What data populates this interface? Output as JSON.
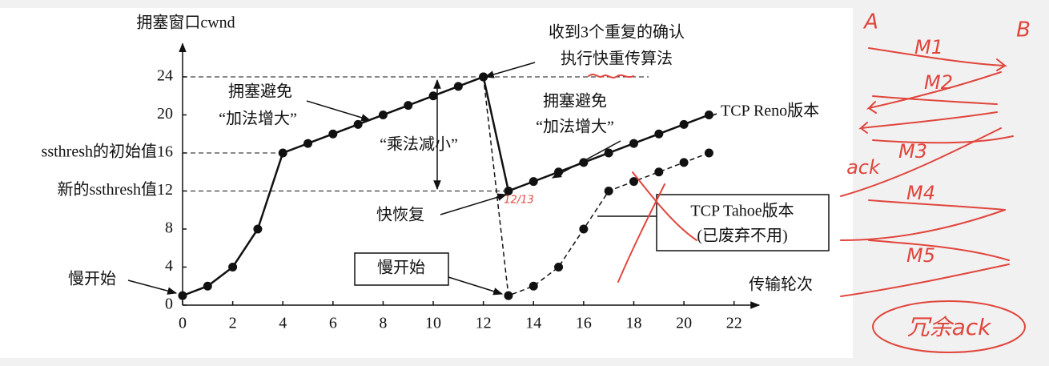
{
  "chart_data": {
    "type": "line",
    "y_label": "拥塞窗口cwnd",
    "x_label": "传输轮次",
    "x": [
      0,
      1,
      2,
      3,
      4,
      5,
      6,
      7,
      8,
      9,
      10,
      11,
      12,
      13,
      14,
      15,
      16,
      17,
      18,
      19,
      20,
      21
    ],
    "series": [
      {
        "name": "TCP Reno版本",
        "color": "#111111",
        "dashed": false,
        "values": [
          1,
          2,
          4,
          8,
          16,
          17,
          18,
          19,
          20,
          21,
          22,
          23,
          24,
          12,
          13,
          14,
          15,
          16,
          17,
          18,
          19,
          20
        ]
      },
      {
        "name": "TCP Tahoe版本",
        "color": "#111111",
        "dashed": true,
        "values": [
          null,
          null,
          null,
          null,
          null,
          null,
          null,
          null,
          null,
          null,
          null,
          null,
          24,
          1,
          2,
          4,
          8,
          12,
          13,
          14,
          15,
          16
        ]
      }
    ],
    "xlim": [
      0,
      23
    ],
    "ylim": [
      0,
      27.5
    ],
    "xticks": [
      0,
      2,
      4,
      6,
      8,
      10,
      12,
      14,
      16,
      18,
      20,
      22
    ],
    "yticks": [
      0,
      4,
      8,
      {
        "value": 12,
        "label": "新的ssthresh值12"
      },
      {
        "value": 16,
        "label": "ssthresh的初始值16"
      },
      20,
      24
    ],
    "annotations": [
      "慢开始",
      "拥塞避免",
      "“加法增大”",
      "“乘法减小”",
      "收到3个重复的确认",
      "执行快重传算法",
      "拥塞避免",
      "“加法增大”",
      "快恢复",
      "慢开始"
    ],
    "tahoe_note": "(已废弃不用)",
    "handwriting": [
      "A",
      "B",
      "M1",
      "M2",
      "M3",
      "ack",
      "M4",
      "M5",
      "冗余ack",
      "12/13"
    ]
  }
}
